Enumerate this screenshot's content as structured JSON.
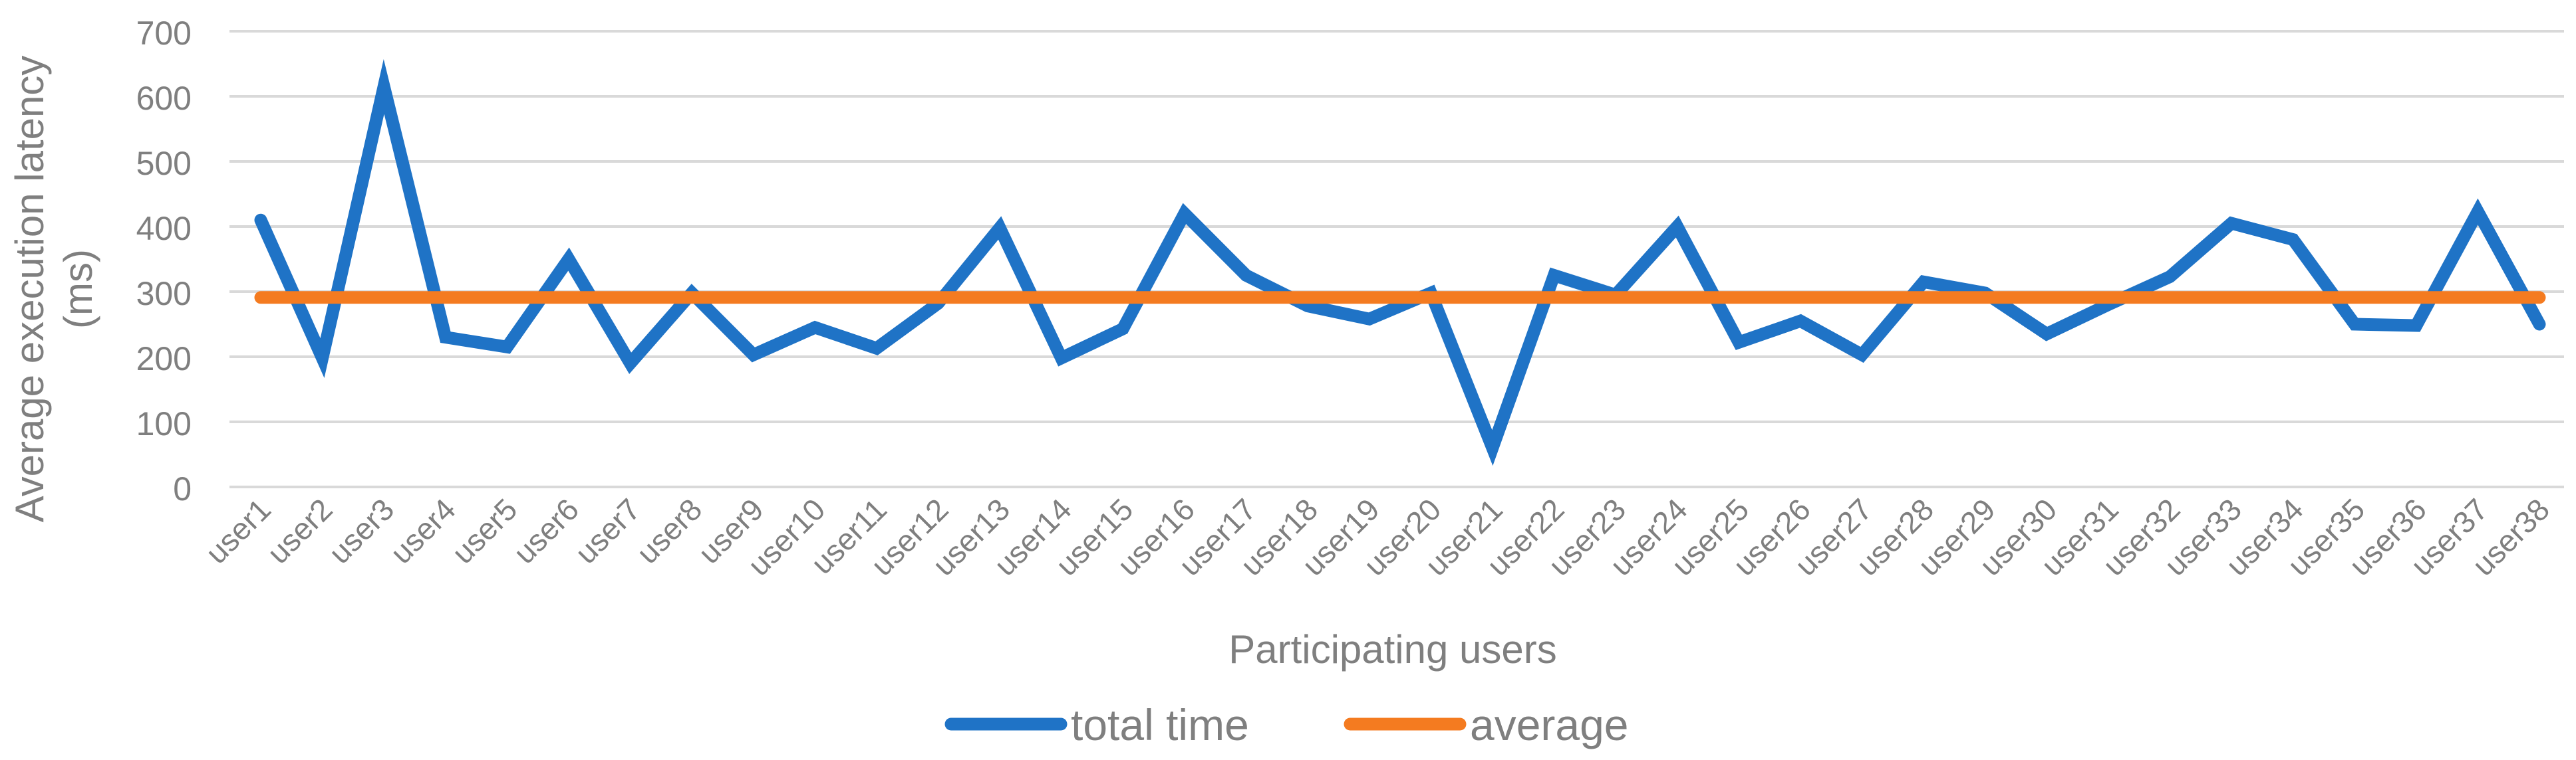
{
  "chart_data": {
    "type": "line",
    "title": "",
    "xlabel": "Participating users",
    "ylabel_lines": [
      "Average execution latency",
      "(ms)"
    ],
    "ylim": [
      0,
      700
    ],
    "yticks": [
      0,
      100,
      200,
      300,
      400,
      500,
      600,
      700
    ],
    "grid": true,
    "legend_position": "bottom",
    "categories": [
      "user1",
      "user2",
      "user3",
      "user4",
      "user5",
      "user6",
      "user7",
      "user8",
      "user9",
      "user10",
      "user11",
      "user12",
      "user13",
      "user14",
      "user15",
      "user16",
      "user17",
      "user18",
      "user19",
      "user20",
      "user21",
      "user22",
      "user23",
      "user24",
      "user25",
      "user26",
      "user27",
      "user28",
      "user29",
      "user30",
      "user31",
      "user32",
      "user33",
      "user34",
      "user35",
      "user36",
      "user37",
      "user38"
    ],
    "series": [
      {
        "name": "total time",
        "color": "#1f73c6",
        "values": [
          410,
          198,
          615,
          230,
          215,
          350,
          190,
          298,
          203,
          245,
          213,
          282,
          398,
          198,
          243,
          420,
          325,
          278,
          258,
          298,
          60,
          325,
          295,
          400,
          222,
          255,
          203,
          315,
          298,
          235,
          280,
          323,
          405,
          380,
          250,
          248,
          423,
          250
        ]
      },
      {
        "name": "average",
        "color": "#f47b20",
        "values": [
          291,
          291,
          291,
          291,
          291,
          291,
          291,
          291,
          291,
          291,
          291,
          291,
          291,
          291,
          291,
          291,
          291,
          291,
          291,
          291,
          291,
          291,
          291,
          291,
          291,
          291,
          291,
          291,
          291,
          291,
          291,
          291,
          291,
          291,
          291,
          291,
          291,
          291
        ]
      }
    ]
  }
}
